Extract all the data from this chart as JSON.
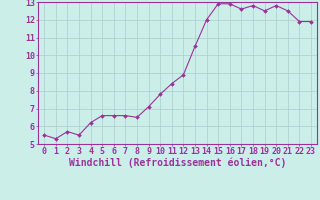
{
  "x": [
    0,
    1,
    2,
    3,
    4,
    5,
    6,
    7,
    8,
    9,
    10,
    11,
    12,
    13,
    14,
    15,
    16,
    17,
    18,
    19,
    20,
    21,
    22,
    23
  ],
  "y": [
    5.5,
    5.3,
    5.7,
    5.5,
    6.2,
    6.6,
    6.6,
    6.6,
    6.5,
    7.1,
    7.8,
    8.4,
    8.9,
    10.5,
    12.0,
    12.9,
    12.9,
    12.6,
    12.8,
    12.5,
    12.8,
    12.5,
    11.9,
    11.9
  ],
  "xlabel": "Windchill (Refroidissement éolien,°C)",
  "ylim": [
    5,
    13
  ],
  "xlim": [
    -0.5,
    23.5
  ],
  "line_color": "#993399",
  "marker_color": "#993399",
  "bg_color": "#cceee8",
  "grid_color": "#aacccc",
  "tick_color": "#993399",
  "label_color": "#993399",
  "yticks": [
    5,
    6,
    7,
    8,
    9,
    10,
    11,
    12,
    13
  ],
  "xtick_labels": [
    "0",
    "1",
    "2",
    "3",
    "4",
    "5",
    "6",
    "7",
    "8",
    "9",
    "10",
    "11",
    "12",
    "13",
    "14",
    "15",
    "16",
    "17",
    "18",
    "19",
    "20",
    "21",
    "22",
    "23"
  ],
  "font_size": 6,
  "xlabel_font_size": 7
}
